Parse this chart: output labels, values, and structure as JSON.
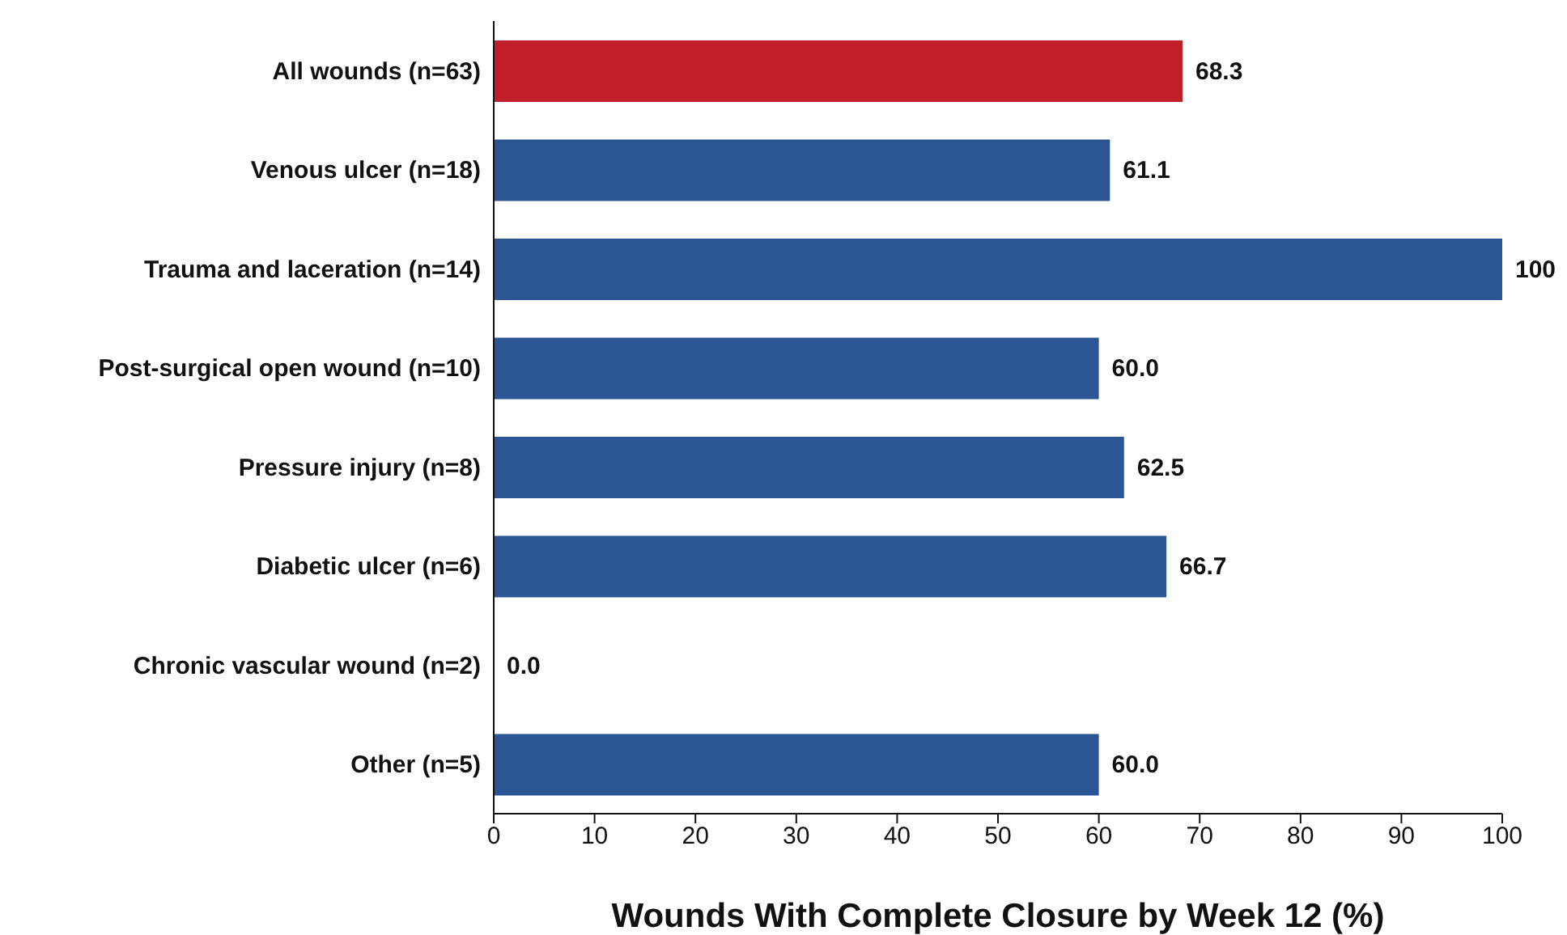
{
  "chart_data": {
    "type": "bar",
    "orientation": "horizontal",
    "xlabel": "Wounds With Complete Closure by Week 12 (%)",
    "categories": [
      "All wounds (n=63)",
      "Venous ulcer (n=18)",
      "Trauma and laceration (n=14)",
      "Post-surgical open wound (n=10)",
      "Pressure injury (n=8)",
      "Diabetic ulcer (n=6)",
      "Chronic vascular wound (n=2)",
      "Other (n=5)"
    ],
    "values": [
      68.3,
      61.1,
      100,
      60.0,
      62.5,
      66.7,
      0.0,
      60.0
    ],
    "value_labels": [
      "68.3",
      "61.1",
      "100",
      "60.0",
      "62.5",
      "66.7",
      "0.0",
      "60.0"
    ],
    "colors": [
      "#c1202a",
      "#2b5595",
      "#2b5595",
      "#2b5595",
      "#2b5595",
      "#2b5595",
      "#2b5595",
      "#2b5595"
    ],
    "xlim": [
      0,
      100
    ],
    "xticks": [
      0,
      10,
      20,
      30,
      40,
      50,
      60,
      70,
      80,
      90,
      100
    ],
    "grid": false
  }
}
